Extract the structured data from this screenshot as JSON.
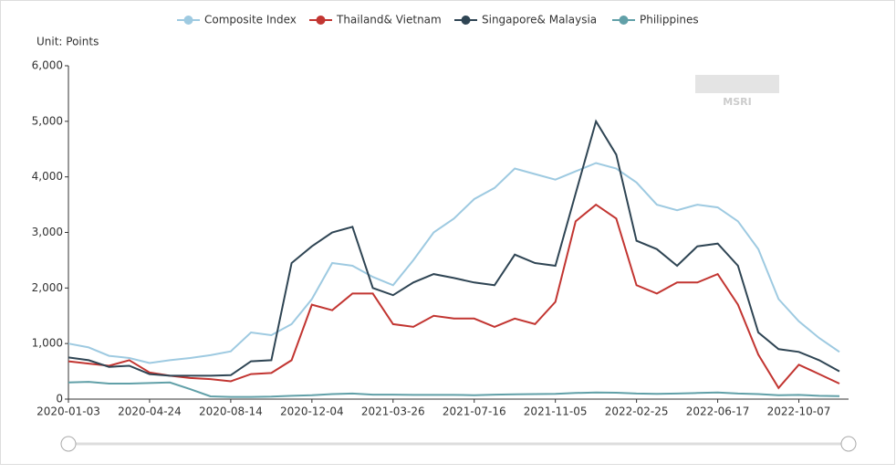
{
  "chart_data": {
    "type": "line",
    "y_label": "Unit: Points",
    "watermark": "MSRI",
    "categories": [
      "2020-01-03",
      null,
      null,
      null,
      "2020-04-24",
      null,
      null,
      null,
      "2020-08-14",
      null,
      null,
      null,
      "2020-12-04",
      null,
      null,
      null,
      "2021-03-26",
      null,
      null,
      null,
      "2021-07-16",
      null,
      null,
      null,
      "2021-11-05",
      null,
      null,
      null,
      "2022-02-25",
      null,
      null,
      null,
      "2022-06-17",
      null,
      null,
      null,
      "2022-10-07",
      null,
      null
    ],
    "series": [
      {
        "name": "Composite Index",
        "color": "#9ecae1",
        "values": [
          1000,
          930,
          780,
          740,
          650,
          700,
          740,
          790,
          860,
          1200,
          1150,
          1350,
          1800,
          2450,
          2400,
          2200,
          2050,
          2500,
          3000,
          3250,
          3600,
          3800,
          4150,
          4050,
          3950,
          4100,
          4250,
          4150,
          3900,
          3500,
          3400,
          3500,
          3450,
          3200,
          2700,
          1800,
          1400,
          1100,
          850
        ]
      },
      {
        "name": "Thailand& Vietnam",
        "color": "#c23531",
        "values": [
          680,
          640,
          600,
          700,
          480,
          420,
          380,
          360,
          320,
          450,
          470,
          700,
          1700,
          1600,
          1900,
          1900,
          1350,
          1300,
          1500,
          1450,
          1450,
          1300,
          1450,
          1350,
          1750,
          3200,
          3500,
          3250,
          2050,
          1900,
          2100,
          2100,
          2250,
          1700,
          800,
          200,
          620,
          450,
          280
        ]
      },
      {
        "name": "Singapore& Malaysia",
        "color": "#2f4554",
        "values": [
          750,
          700,
          580,
          600,
          450,
          420,
          420,
          420,
          430,
          680,
          700,
          2450,
          2750,
          3000,
          3100,
          2000,
          1870,
          2100,
          2250,
          2180,
          2100,
          2050,
          2600,
          2450,
          2400,
          3700,
          5000,
          4400,
          2850,
          2700,
          2400,
          2750,
          2800,
          2400,
          1200,
          900,
          850,
          700,
          500
        ]
      },
      {
        "name": "Philippines",
        "color": "#61a0a8",
        "values": [
          300,
          310,
          280,
          280,
          290,
          300,
          180,
          50,
          40,
          40,
          45,
          60,
          70,
          90,
          100,
          80,
          80,
          75,
          75,
          75,
          70,
          80,
          85,
          90,
          95,
          110,
          120,
          115,
          100,
          95,
          100,
          110,
          120,
          100,
          90,
          70,
          75,
          60,
          55
        ]
      }
    ],
    "ylim": [
      0,
      6000
    ],
    "yticks": [
      0,
      {
        "value": 1000,
        "label": "1,000"
      },
      {
        "value": 2000,
        "label": "2,000"
      },
      {
        "value": 3000,
        "label": "3,000"
      },
      {
        "value": 4000,
        "label": "4,000"
      },
      {
        "value": 5000,
        "label": "5,000"
      },
      {
        "value": 6000,
        "label": "6,000"
      }
    ],
    "legend": "top",
    "grid": false
  }
}
